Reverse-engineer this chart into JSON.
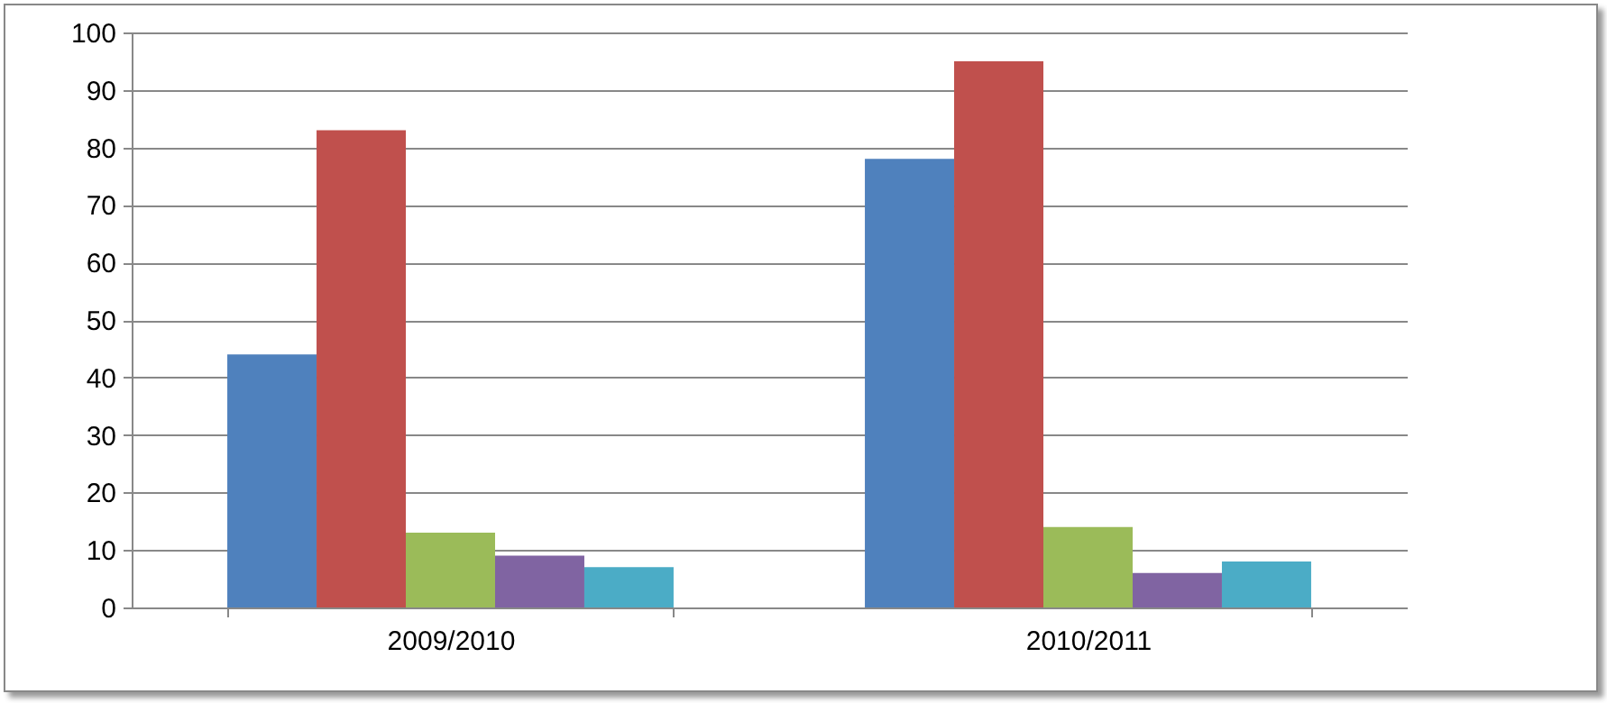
{
  "chart_data": {
    "type": "bar",
    "categories": [
      "2009/2010",
      "2010/2011"
    ],
    "series": [
      {
        "color": "#4f81bd",
        "values": [
          44,
          78
        ]
      },
      {
        "color": "#c0504d",
        "values": [
          83,
          95
        ]
      },
      {
        "color": "#9bbb59",
        "values": [
          13,
          14
        ]
      },
      {
        "color": "#8064a2",
        "values": [
          9,
          6
        ]
      },
      {
        "color": "#4bacc6",
        "values": [
          7,
          8
        ]
      }
    ],
    "ylim": [
      0,
      100
    ],
    "yticks": [
      0,
      10,
      20,
      30,
      40,
      50,
      60,
      70,
      80,
      90,
      100
    ],
    "grid": "y"
  }
}
